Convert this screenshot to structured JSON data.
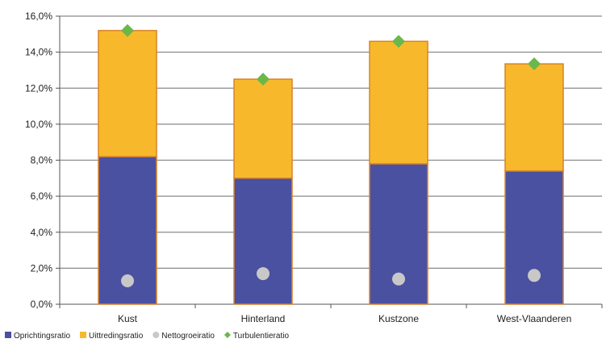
{
  "chart_data": {
    "type": "bar",
    "stacked": true,
    "categories": [
      "Kust",
      "Hinterland",
      "Kustzone",
      "West-Vlaanderen"
    ],
    "series": [
      {
        "name": "Oprichtingsratio",
        "kind": "bar",
        "color": "#4a51a0",
        "values": [
          8.2,
          7.0,
          7.8,
          7.4
        ]
      },
      {
        "name": "Uittredingsratio",
        "kind": "bar",
        "color": "#f7b92b",
        "values": [
          7.0,
          5.5,
          6.8,
          5.95
        ]
      },
      {
        "name": "Nettogroeiratio",
        "kind": "marker",
        "marker": "circle",
        "color": "#c8c8c8",
        "values": [
          1.3,
          1.7,
          1.4,
          1.6
        ]
      },
      {
        "name": "Turbulentieratio",
        "kind": "marker",
        "marker": "diamond",
        "color": "#6ab84a",
        "values": [
          15.2,
          12.5,
          14.6,
          13.35
        ]
      }
    ],
    "ylim": [
      0,
      16
    ],
    "yticks": [
      0,
      2,
      4,
      6,
      8,
      10,
      12,
      14,
      16
    ],
    "ytick_labels": [
      "0,0%",
      "2,0%",
      "4,0%",
      "6,0%",
      "8,0%",
      "10,0%",
      "12,0%",
      "14,0%",
      "16,0%"
    ],
    "title": "",
    "xlabel": "",
    "ylabel": "",
    "grid": true,
    "legend_position": "bottom"
  }
}
